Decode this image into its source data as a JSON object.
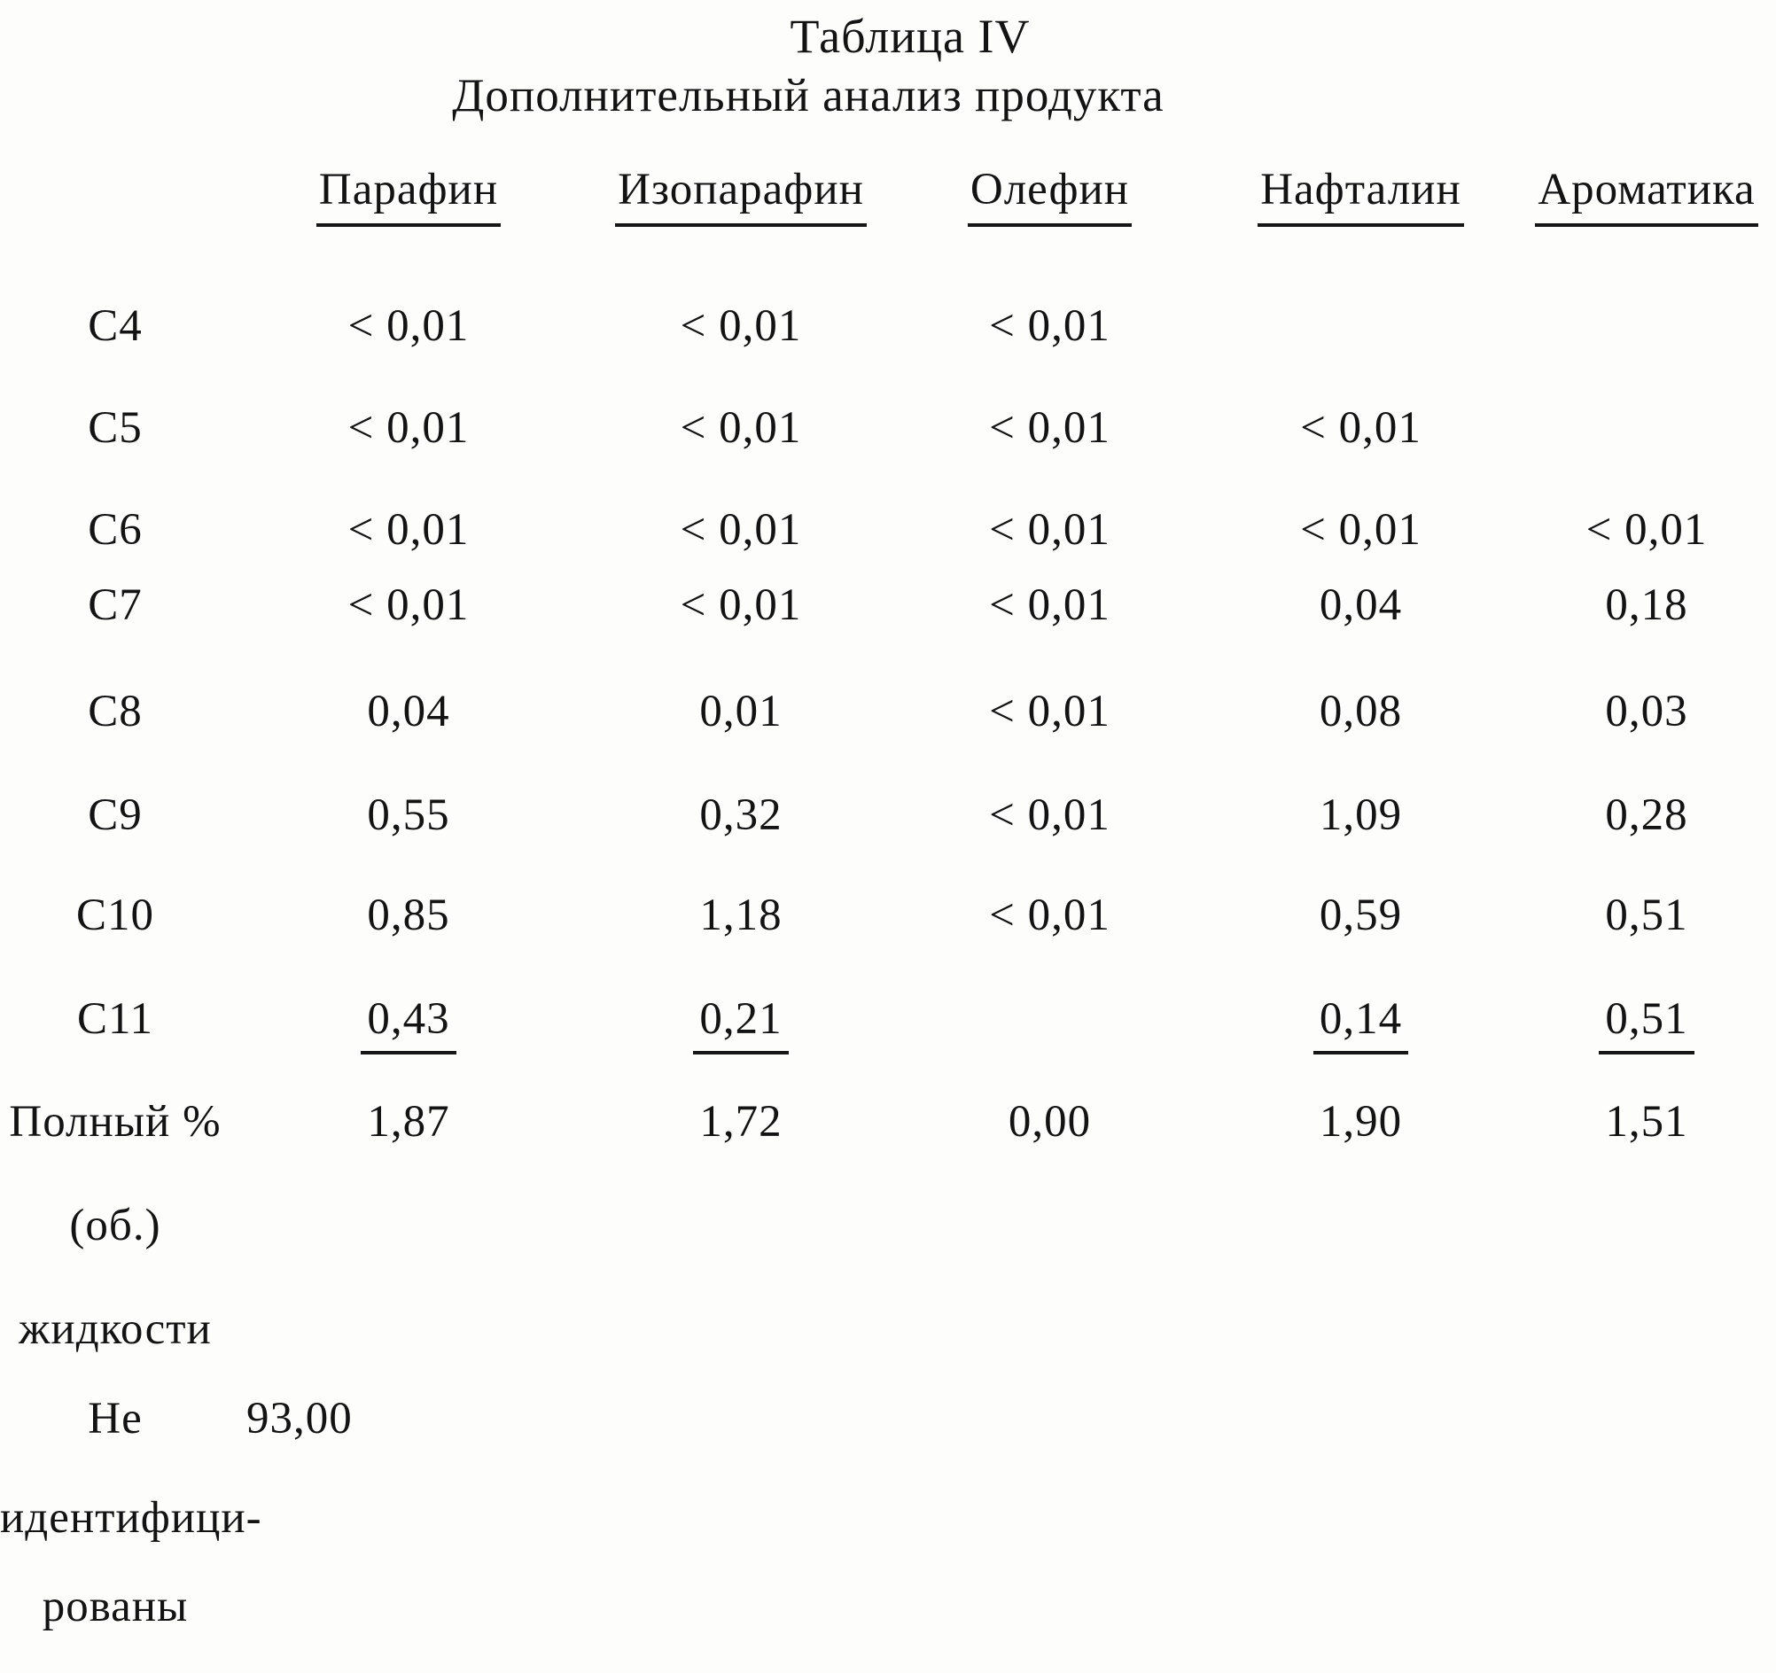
{
  "document": {
    "title": "Таблица IV",
    "subtitle": "Дополнительный анализ продукта"
  },
  "table": {
    "columns": [
      "Парафин",
      "Изопарафин",
      "Олефин",
      "Нафталин",
      "Ароматика"
    ],
    "rows": [
      {
        "label": "C4",
        "values": [
          "< 0,01",
          "< 0,01",
          "< 0,01",
          "",
          ""
        ]
      },
      {
        "label": "C5",
        "values": [
          "< 0,01",
          "< 0,01",
          "< 0,01",
          "< 0,01",
          ""
        ]
      },
      {
        "label": "C6",
        "values": [
          "< 0,01",
          "< 0,01",
          "< 0,01",
          "< 0,01",
          "< 0,01"
        ]
      },
      {
        "label": "C7",
        "values": [
          "< 0,01",
          "< 0,01",
          "< 0,01",
          "0,04",
          "0,18"
        ]
      },
      {
        "label": "C8",
        "values": [
          "0,04",
          "0,01",
          "< 0,01",
          "0,08",
          "0,03"
        ]
      },
      {
        "label": "C9",
        "values": [
          "0,55",
          "0,32",
          "< 0,01",
          "1,09",
          "0,28"
        ]
      },
      {
        "label": "C10",
        "values": [
          "0,85",
          "1,18",
          "< 0,01",
          "0,59",
          "0,51"
        ]
      },
      {
        "label": "C11",
        "values": [
          "0,43",
          "0,21",
          "",
          "0,14",
          "0,51"
        ],
        "values_underlined": true
      },
      {
        "label": "Полный %",
        "values": [
          "1,87",
          "1,72",
          "0,00",
          "1,90",
          "1,51"
        ]
      }
    ],
    "total_label_continuation": [
      "(об.)",
      "жидкости"
    ],
    "unidentified": {
      "label_lines": [
        "Не",
        "идентифици-",
        "рованы"
      ],
      "value": "93,00"
    }
  }
}
